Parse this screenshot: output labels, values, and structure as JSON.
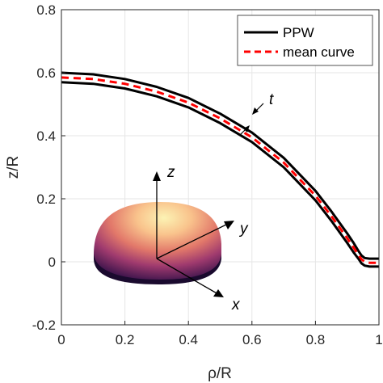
{
  "chart_data": {
    "type": "line",
    "xlabel": "ρ/R",
    "ylabel": "z/R",
    "xlim": [
      0,
      1
    ],
    "ylim": [
      -0.2,
      0.8
    ],
    "xticks": [
      0,
      0.2,
      0.4,
      0.6,
      0.8,
      1
    ],
    "yticks": [
      -0.2,
      0,
      0.2,
      0.4,
      0.6,
      0.8
    ],
    "xtick_labels": [
      "0",
      "0.2",
      "0.4",
      "0.6",
      "0.8",
      "1"
    ],
    "ytick_labels": [
      "-0.2",
      "0",
      "0.2",
      "0.4",
      "0.6",
      "0.8"
    ],
    "grid": true,
    "legend_position": "top-right",
    "series": [
      {
        "name": "PPW",
        "color": "#000000",
        "style": "solid",
        "x": [
          0,
          0.1,
          0.2,
          0.3,
          0.4,
          0.5,
          0.6,
          0.7,
          0.8,
          0.85,
          0.9,
          0.92,
          0.935,
          0.945,
          0.955,
          0.97,
          0.985,
          1.0
        ],
        "y": [
          0.6,
          0.595,
          0.58,
          0.555,
          0.52,
          0.47,
          0.41,
          0.33,
          0.225,
          0.16,
          0.09,
          0.06,
          0.035,
          0.02,
          0.012,
          0.01,
          0.01,
          0.01
        ]
      },
      {
        "name": "PPW",
        "color": "#000000",
        "style": "solid",
        "x": [
          0,
          0.1,
          0.2,
          0.3,
          0.4,
          0.5,
          0.6,
          0.7,
          0.8,
          0.85,
          0.9,
          0.92,
          0.935,
          0.945,
          0.955,
          0.97,
          0.985,
          1.0
        ],
        "y": [
          0.57,
          0.565,
          0.55,
          0.525,
          0.49,
          0.44,
          0.38,
          0.3,
          0.195,
          0.13,
          0.06,
          0.03,
          0.01,
          -0.005,
          -0.012,
          -0.015,
          -0.015,
          -0.015
        ]
      },
      {
        "name": "mean curve",
        "color": "#ff0000",
        "style": "dashed",
        "x": [
          0,
          0.1,
          0.2,
          0.3,
          0.4,
          0.5,
          0.6,
          0.7,
          0.8,
          0.85,
          0.9,
          0.92,
          0.935,
          0.945,
          0.955,
          0.97,
          0.985,
          1.0
        ],
        "y": [
          0.585,
          0.58,
          0.565,
          0.54,
          0.505,
          0.455,
          0.395,
          0.315,
          0.21,
          0.145,
          0.075,
          0.045,
          0.022,
          0.008,
          0.0,
          -0.003,
          -0.003,
          -0.003
        ]
      }
    ],
    "legend": [
      {
        "label": "PPW",
        "color": "#000000",
        "style": "solid"
      },
      {
        "label": "mean curve",
        "color": "#ff0000",
        "style": "dashed"
      }
    ],
    "annotations": [
      {
        "text": "t",
        "x": 0.605,
        "y": 0.44
      }
    ],
    "inset": {
      "description_labels": {
        "z": "z",
        "y": "y",
        "x": "x"
      }
    }
  }
}
